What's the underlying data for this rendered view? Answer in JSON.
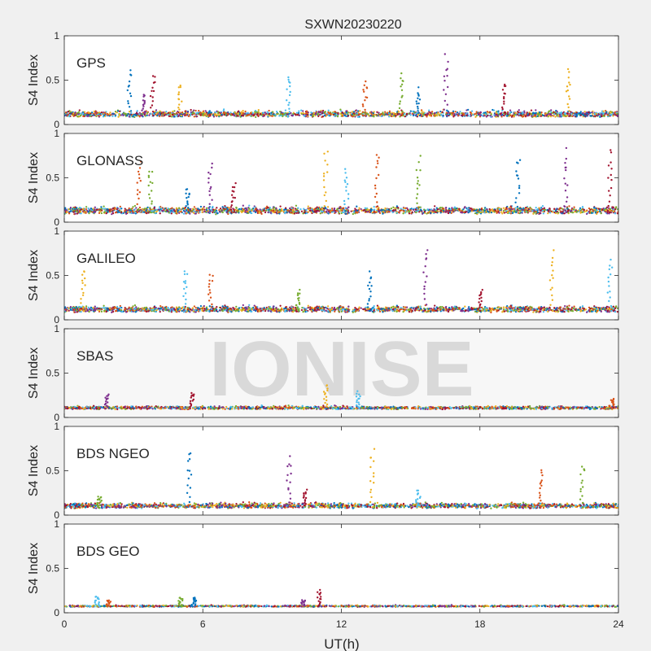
{
  "figure": {
    "title": "SXWN20230220",
    "watermark": "IONISE",
    "background": "#f0f0f0"
  },
  "chart_data": {
    "type": "scatter",
    "title": "SXWN20230220",
    "xlabel": "UT(h)",
    "ylabel": "S4 Index",
    "xlim": [
      0,
      24
    ],
    "ylim": [
      0,
      1
    ],
    "xticks": [
      0,
      6,
      12,
      18,
      24
    ],
    "yticks": [
      0,
      0.5,
      1
    ],
    "ytick_labels": [
      "0",
      "0.5",
      "1"
    ],
    "grid": false,
    "colors": [
      "#0072bd",
      "#d95319",
      "#edb120",
      "#7e2f8e",
      "#77ac30",
      "#4dbeee",
      "#a2142f"
    ],
    "panels": [
      {
        "label": "GPS",
        "baseline": 0.1,
        "noise": 0.06,
        "count": 1800,
        "events": [
          {
            "t": 2.8,
            "peak": 0.65
          },
          {
            "t": 3.4,
            "peak": 0.35
          },
          {
            "t": 3.8,
            "peak": 0.6
          },
          {
            "t": 5.0,
            "peak": 0.48
          },
          {
            "t": 9.7,
            "peak": 0.58
          },
          {
            "t": 13.0,
            "peak": 0.52
          },
          {
            "t": 14.6,
            "peak": 0.62
          },
          {
            "t": 15.3,
            "peak": 0.42
          },
          {
            "t": 16.5,
            "peak": 0.8
          },
          {
            "t": 19.0,
            "peak": 0.5
          },
          {
            "t": 21.8,
            "peak": 0.65
          }
        ]
      },
      {
        "label": "GLONASS",
        "baseline": 0.11,
        "noise": 0.07,
        "count": 1900,
        "events": [
          {
            "t": 3.2,
            "peak": 0.7
          },
          {
            "t": 3.7,
            "peak": 0.65
          },
          {
            "t": 5.3,
            "peak": 0.4
          },
          {
            "t": 6.3,
            "peak": 0.68
          },
          {
            "t": 7.3,
            "peak": 0.45
          },
          {
            "t": 11.3,
            "peak": 0.85
          },
          {
            "t": 12.2,
            "peak": 0.62
          },
          {
            "t": 13.5,
            "peak": 0.82
          },
          {
            "t": 15.3,
            "peak": 0.75
          },
          {
            "t": 19.6,
            "peak": 0.78
          },
          {
            "t": 21.7,
            "peak": 0.85
          },
          {
            "t": 23.6,
            "peak": 0.85
          }
        ]
      },
      {
        "label": "GALILEO",
        "baseline": 0.1,
        "noise": 0.06,
        "count": 1800,
        "events": [
          {
            "t": 0.8,
            "peak": 0.62
          },
          {
            "t": 5.2,
            "peak": 0.6
          },
          {
            "t": 6.3,
            "peak": 0.55
          },
          {
            "t": 10.1,
            "peak": 0.35
          },
          {
            "t": 13.2,
            "peak": 0.55
          },
          {
            "t": 15.6,
            "peak": 0.85
          },
          {
            "t": 18.0,
            "peak": 0.35
          },
          {
            "t": 21.1,
            "peak": 0.8
          },
          {
            "t": 23.6,
            "peak": 0.7
          }
        ]
      },
      {
        "label": "SBAS",
        "baseline": 0.1,
        "noise": 0.03,
        "count": 1500,
        "events": [
          {
            "t": 1.8,
            "peak": 0.28
          },
          {
            "t": 5.5,
            "peak": 0.3
          },
          {
            "t": 11.3,
            "peak": 0.38
          },
          {
            "t": 12.7,
            "peak": 0.3
          },
          {
            "t": 23.7,
            "peak": 0.22
          }
        ]
      },
      {
        "label": "BDS NGEO",
        "baseline": 0.09,
        "noise": 0.05,
        "count": 1800,
        "events": [
          {
            "t": 1.5,
            "peak": 0.22
          },
          {
            "t": 5.4,
            "peak": 0.75
          },
          {
            "t": 9.7,
            "peak": 0.68
          },
          {
            "t": 10.4,
            "peak": 0.3
          },
          {
            "t": 13.3,
            "peak": 0.75
          },
          {
            "t": 15.3,
            "peak": 0.3
          },
          {
            "t": 20.6,
            "peak": 0.52
          },
          {
            "t": 22.4,
            "peak": 0.62
          }
        ]
      },
      {
        "label": "BDS GEO",
        "baseline": 0.07,
        "noise": 0.015,
        "count": 1200,
        "events": [
          {
            "t": 1.4,
            "peak": 0.2
          },
          {
            "t": 1.9,
            "peak": 0.15
          },
          {
            "t": 5.0,
            "peak": 0.18
          },
          {
            "t": 5.6,
            "peak": 0.18
          },
          {
            "t": 10.3,
            "peak": 0.15
          },
          {
            "t": 11.0,
            "peak": 0.27
          }
        ]
      }
    ]
  }
}
